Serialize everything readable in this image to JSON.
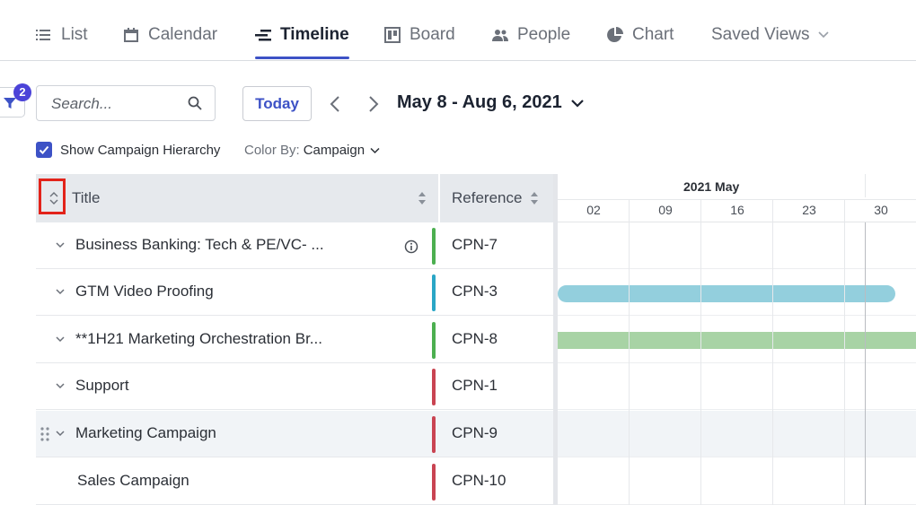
{
  "tabs": [
    {
      "label": "List",
      "icon": "list-icon"
    },
    {
      "label": "Calendar",
      "icon": "calendar-icon"
    },
    {
      "label": "Timeline",
      "icon": "timeline-icon",
      "active": true
    },
    {
      "label": "Board",
      "icon": "board-icon"
    },
    {
      "label": "People",
      "icon": "people-icon"
    },
    {
      "label": "Chart",
      "icon": "pie-chart-icon"
    },
    {
      "label": "Saved Views",
      "icon": "chevron-down-icon"
    }
  ],
  "toolbar": {
    "filter_count": "2",
    "search_placeholder": "Search...",
    "search_value": "",
    "today_label": "Today",
    "date_range": "May 8 - Aug 6, 2021"
  },
  "options": {
    "show_hierarchy_label": "Show Campaign Hierarchy",
    "show_hierarchy_checked": true,
    "color_by_label": "Color By:",
    "color_by_value": "Campaign"
  },
  "table": {
    "col_title": "Title",
    "col_reference": "Reference",
    "rows": [
      {
        "title": "Business Banking: Tech & PE/VC- ...",
        "reference": "CPN-7",
        "color": "#4caf50",
        "info": true,
        "chevron": true
      },
      {
        "title": "GTM Video Proofing",
        "reference": "CPN-3",
        "color": "#2aa6c6",
        "chevron": true
      },
      {
        "title": "**1H21 Marketing Orchestration Br...",
        "reference": "CPN-8",
        "color": "#4caf50",
        "chevron": true
      },
      {
        "title": "Support",
        "reference": "CPN-1",
        "color": "#c94452",
        "chevron": true
      },
      {
        "title": "Marketing Campaign",
        "reference": "CPN-9",
        "color": "#c94452",
        "chevron": true,
        "highlighted": true
      },
      {
        "title": "Sales Campaign",
        "reference": "CPN-10",
        "color": "#c94452"
      }
    ]
  },
  "timeline": {
    "month": "2021 May",
    "weeks": [
      "02",
      "09",
      "16",
      "23",
      "30"
    ],
    "bar_colors": {
      "teal": "#93cfdd",
      "green": "#a8d3a5"
    }
  }
}
